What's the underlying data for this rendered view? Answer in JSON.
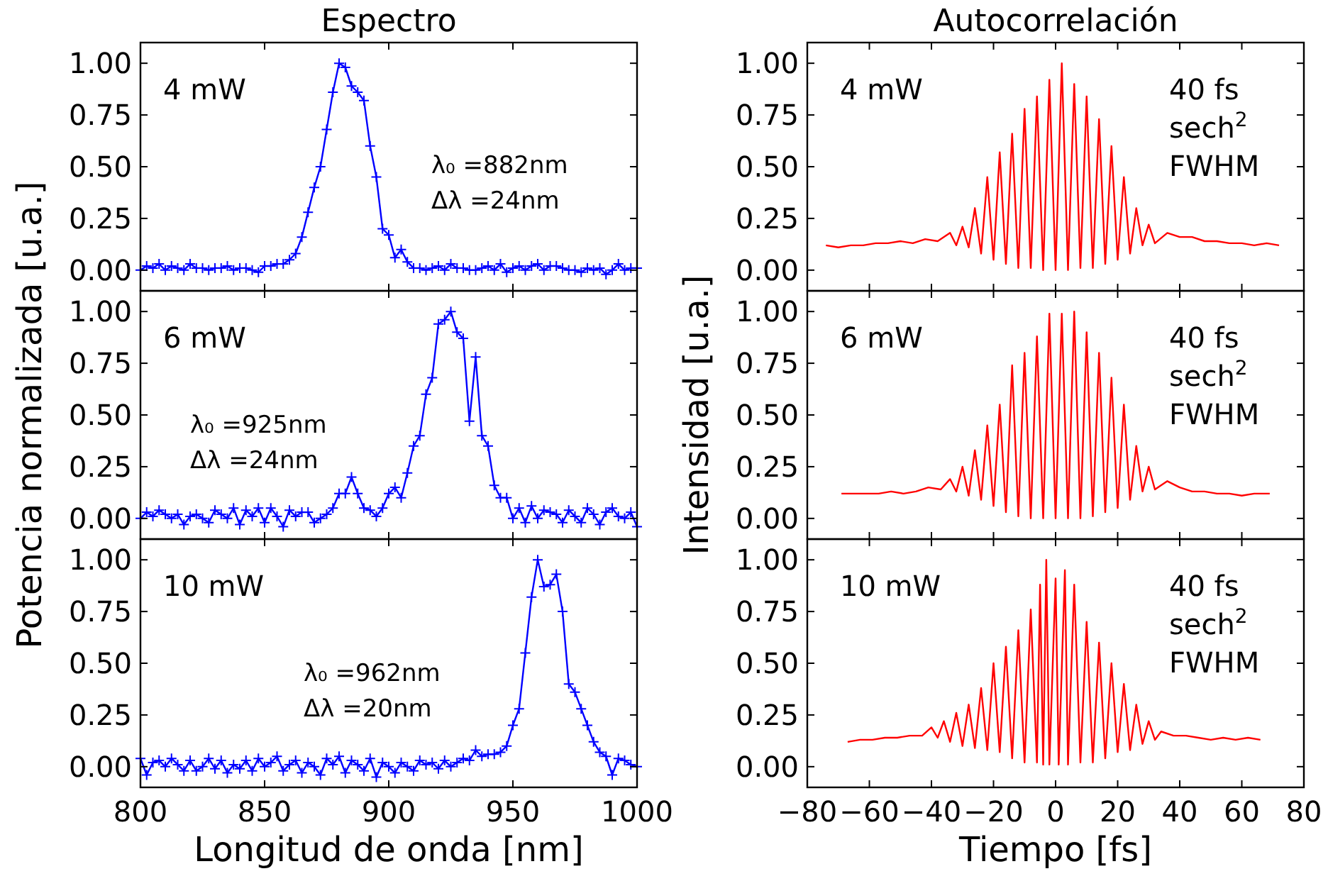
{
  "chart_data": [
    {
      "type": "line",
      "title": "Espectro",
      "marker": "cross",
      "line_style": "solid",
      "tick_labels": "y",
      "xlim": [
        800,
        1000
      ],
      "xticks": [
        800,
        850,
        900,
        950,
        1000
      ],
      "ylim": [
        -0.1,
        1.1
      ],
      "yticks": [
        {
          "value": 0,
          "label": "0.00"
        },
        {
          "value": 0.25,
          "label": "0.25"
        },
        {
          "value": 0.5,
          "label": "0.50"
        },
        {
          "value": 0.75,
          "label": "0.75"
        },
        {
          "value": 1,
          "label": "1.00"
        }
      ],
      "annotations": [
        "4 mW",
        "λ₀ =882nm",
        "Δλ =24nm"
      ],
      "x": [
        800,
        802.5,
        805,
        807.5,
        810,
        812.5,
        815,
        817.5,
        820,
        822.5,
        825,
        827.5,
        830,
        832.5,
        835,
        837.5,
        840,
        842.5,
        845,
        847.5,
        850,
        852.5,
        855,
        857.5,
        860,
        862.5,
        865,
        867.5,
        870,
        872.5,
        875,
        877.5,
        880,
        882.5,
        885,
        887.5,
        890,
        892.5,
        895,
        897.5,
        900,
        902.5,
        905,
        907.5,
        910,
        912.5,
        915,
        917.5,
        920,
        922.5,
        925,
        927.5,
        930,
        932.5,
        935,
        937.5,
        940,
        942.5,
        945,
        947.5,
        950,
        952.5,
        955,
        957.5,
        960,
        962.5,
        965,
        967.5,
        970,
        972.5,
        975,
        977.5,
        980,
        982.5,
        985,
        987.5,
        990,
        992.5,
        995,
        997.5,
        1000
      ],
      "series": [
        {
          "color": "#0000ff",
          "values": [
            0.0,
            0.02,
            0.01,
            0.03,
            0.0,
            0.02,
            0.01,
            0.0,
            0.03,
            0.01,
            0.01,
            0.0,
            0.01,
            0.01,
            0.02,
            0.0,
            0.01,
            0.01,
            0.0,
            -0.01,
            0.02,
            0.02,
            0.03,
            0.03,
            0.05,
            0.08,
            0.16,
            0.28,
            0.4,
            0.5,
            0.68,
            0.86,
            1.0,
            0.98,
            0.89,
            0.86,
            0.82,
            0.6,
            0.45,
            0.2,
            0.17,
            0.06,
            0.1,
            0.04,
            0.01,
            0.01,
            0.0,
            0.01,
            0.02,
            0.0,
            0.03,
            0.01,
            0.01,
            0.0,
            0.0,
            0.01,
            0.02,
            0.0,
            0.03,
            -0.01,
            0.01,
            0.02,
            0.0,
            0.02,
            0.03,
            0.0,
            0.02,
            0.02,
            0.01,
            0.0,
            0.0,
            -0.01,
            0.01,
            0.0,
            0.01,
            -0.02,
            0.0,
            0.03,
            0.0,
            0.01,
            0.01
          ]
        }
      ]
    },
    {
      "type": "line",
      "title": "Autocorrelación",
      "marker": "none",
      "line_style": "solid",
      "tick_labels": "y",
      "xlim": [
        -80,
        80
      ],
      "xticks": [
        -80,
        -60,
        -40,
        -20,
        0,
        20,
        40,
        60,
        80
      ],
      "ylim": [
        -0.1,
        1.1
      ],
      "yticks": [
        {
          "value": 0,
          "label": "0.00"
        },
        {
          "value": 0.25,
          "label": "0.25"
        },
        {
          "value": 0.5,
          "label": "0.50"
        },
        {
          "value": 0.75,
          "label": "0.75"
        },
        {
          "value": 1,
          "label": "1.00"
        }
      ],
      "annotations": [
        "4 mW",
        "40 fs",
        "sech$^{2}$",
        "FWHM"
      ],
      "x": [
        -74,
        -70,
        -66,
        -62,
        -58,
        -54,
        -50,
        -46,
        -42,
        -38,
        -34,
        -32,
        -30,
        -28,
        -26,
        -24,
        -22,
        -20,
        -18,
        -16,
        -14,
        -12,
        -10,
        -8,
        -6,
        -4,
        -2,
        0,
        2,
        4,
        6,
        8,
        10,
        12,
        14,
        16,
        18,
        20,
        22,
        24,
        26,
        28,
        30,
        32,
        36,
        40,
        44,
        48,
        52,
        56,
        60,
        64,
        68,
        72
      ],
      "series": [
        {
          "color": "#ff0000",
          "values": [
            0.12,
            0.11,
            0.12,
            0.12,
            0.13,
            0.13,
            0.14,
            0.13,
            0.15,
            0.14,
            0.18,
            0.12,
            0.21,
            0.11,
            0.3,
            0.08,
            0.45,
            0.05,
            0.57,
            0.03,
            0.66,
            0.01,
            0.78,
            0.01,
            0.84,
            0.0,
            0.92,
            0.0,
            1.0,
            0.0,
            0.9,
            0.01,
            0.84,
            0.01,
            0.73,
            0.03,
            0.6,
            0.05,
            0.45,
            0.08,
            0.3,
            0.12,
            0.22,
            0.13,
            0.18,
            0.16,
            0.16,
            0.14,
            0.14,
            0.13,
            0.13,
            0.12,
            0.13,
            0.12
          ]
        }
      ]
    },
    {
      "type": "line",
      "ylabel": "Potencia normalizada [u.a.]",
      "marker": "cross",
      "line_style": "solid",
      "tick_labels": "y",
      "xlim": [
        800,
        1000
      ],
      "xticks": [
        800,
        850,
        900,
        950,
        1000
      ],
      "ylim": [
        -0.1,
        1.1
      ],
      "yticks": [
        {
          "value": 0,
          "label": "0.00"
        },
        {
          "value": 0.25,
          "label": "0.25"
        },
        {
          "value": 0.5,
          "label": "0.50"
        },
        {
          "value": 0.75,
          "label": "0.75"
        },
        {
          "value": 1,
          "label": "1.00"
        }
      ],
      "annotations": [
        "6 mW",
        "λ₀ =925nm",
        "Δλ =24nm"
      ],
      "x": [
        800,
        802.5,
        805,
        807.5,
        810,
        812.5,
        815,
        817.5,
        820,
        822.5,
        825,
        827.5,
        830,
        832.5,
        835,
        837.5,
        840,
        842.5,
        845,
        847.5,
        850,
        852.5,
        855,
        857.5,
        860,
        862.5,
        865,
        867.5,
        870,
        872.5,
        875,
        877.5,
        880,
        882.5,
        885,
        887.5,
        890,
        892.5,
        895,
        897.5,
        900,
        902.5,
        905,
        907.5,
        910,
        912.5,
        915,
        917.5,
        920,
        922.5,
        925,
        927.5,
        930,
        932.5,
        935,
        937.5,
        940,
        942.5,
        945,
        947.5,
        950,
        952.5,
        955,
        957.5,
        960,
        962.5,
        965,
        967.5,
        970,
        972.5,
        975,
        977.5,
        980,
        982.5,
        985,
        987.5,
        990,
        992.5,
        995,
        997.5,
        1000
      ],
      "series": [
        {
          "color": "#0000ff",
          "values": [
            0.0,
            0.03,
            0.01,
            0.04,
            0.02,
            0.0,
            0.02,
            -0.03,
            0.01,
            0.02,
            0.0,
            -0.02,
            0.04,
            0.02,
            0.0,
            0.05,
            -0.03,
            0.04,
            0.01,
            0.05,
            -0.02,
            0.05,
            0.01,
            -0.04,
            0.04,
            0.01,
            0.03,
            0.03,
            -0.02,
            0.0,
            0.02,
            0.05,
            0.12,
            0.12,
            0.2,
            0.12,
            0.05,
            0.04,
            0.01,
            0.05,
            0.12,
            0.15,
            0.1,
            0.22,
            0.35,
            0.4,
            0.6,
            0.68,
            0.94,
            0.96,
            1.0,
            0.9,
            0.87,
            0.47,
            0.78,
            0.4,
            0.35,
            0.16,
            0.1,
            0.1,
            0.0,
            0.05,
            -0.02,
            0.06,
            0.0,
            0.04,
            0.03,
            0.02,
            -0.02,
            0.04,
            0.01,
            -0.02,
            0.05,
            0.02,
            -0.03,
            0.03,
            0.05,
            0.01,
            0.0,
            0.03,
            -0.04
          ]
        }
      ]
    },
    {
      "type": "line",
      "ylabel": "Intensidad [u.a.]",
      "marker": "none",
      "line_style": "solid",
      "tick_labels": "y",
      "xlim": [
        -80,
        80
      ],
      "xticks": [
        -80,
        -60,
        -40,
        -20,
        0,
        20,
        40,
        60,
        80
      ],
      "ylim": [
        -0.1,
        1.1
      ],
      "yticks": [
        {
          "value": 0,
          "label": "0.00"
        },
        {
          "value": 0.25,
          "label": "0.25"
        },
        {
          "value": 0.5,
          "label": "0.50"
        },
        {
          "value": 0.75,
          "label": "0.75"
        },
        {
          "value": 1,
          "label": "1.00"
        }
      ],
      "annotations": [
        "6 mW",
        "40 fs",
        "sech$^{2}$",
        "FWHM"
      ],
      "x": [
        -69,
        -65,
        -61,
        -57,
        -53,
        -49,
        -45,
        -41,
        -37,
        -34,
        -32,
        -30,
        -28,
        -26,
        -24,
        -22,
        -20,
        -18,
        -16,
        -14,
        -12,
        -10,
        -8,
        -6,
        -4,
        -2,
        0,
        2,
        4,
        6,
        8,
        10,
        12,
        14,
        16,
        18,
        20,
        22,
        24,
        26,
        28,
        30,
        32,
        36,
        40,
        44,
        48,
        52,
        56,
        60,
        64,
        69
      ],
      "series": [
        {
          "color": "#ff0000",
          "values": [
            0.12,
            0.12,
            0.12,
            0.12,
            0.13,
            0.12,
            0.13,
            0.15,
            0.14,
            0.19,
            0.13,
            0.25,
            0.11,
            0.33,
            0.09,
            0.45,
            0.06,
            0.55,
            0.03,
            0.74,
            0.01,
            0.8,
            0.0,
            0.88,
            0.0,
            0.99,
            0.0,
            0.99,
            0.0,
            1.0,
            0.0,
            0.9,
            0.01,
            0.8,
            0.03,
            0.68,
            0.05,
            0.55,
            0.09,
            0.35,
            0.13,
            0.25,
            0.14,
            0.18,
            0.15,
            0.13,
            0.13,
            0.12,
            0.12,
            0.11,
            0.12,
            0.12
          ]
        }
      ]
    },
    {
      "type": "line",
      "xlabel": "Longitud de onda [nm]",
      "marker": "cross",
      "line_style": "solid",
      "xlim": [
        800,
        1000
      ],
      "xticks": [
        800,
        850,
        900,
        950,
        1000
      ],
      "ylim": [
        -0.1,
        1.1
      ],
      "yticks": [
        {
          "value": 0,
          "label": "0.00"
        },
        {
          "value": 0.25,
          "label": "0.25"
        },
        {
          "value": 0.5,
          "label": "0.50"
        },
        {
          "value": 0.75,
          "label": "0.75"
        },
        {
          "value": 1,
          "label": "1.00"
        }
      ],
      "annotations": [
        "10 mW",
        "λ₀ =962nm",
        "Δλ =20nm"
      ],
      "x": [
        800,
        802.5,
        805,
        807.5,
        810,
        812.5,
        815,
        817.5,
        820,
        822.5,
        825,
        827.5,
        830,
        832.5,
        835,
        837.5,
        840,
        842.5,
        845,
        847.5,
        850,
        852.5,
        855,
        857.5,
        860,
        862.5,
        865,
        867.5,
        870,
        872.5,
        875,
        877.5,
        880,
        882.5,
        885,
        887.5,
        890,
        892.5,
        895,
        897.5,
        900,
        902.5,
        905,
        907.5,
        910,
        912.5,
        915,
        917.5,
        920,
        922.5,
        925,
        927.5,
        930,
        932.5,
        935,
        937.5,
        940,
        942.5,
        945,
        947.5,
        950,
        952.5,
        955,
        957.5,
        960,
        962.5,
        965,
        967.5,
        970,
        972.5,
        975,
        977.5,
        980,
        982.5,
        985,
        987.5,
        990,
        992.5,
        995,
        997.5,
        1000
      ],
      "series": [
        {
          "color": "#0000ff",
          "values": [
            0.04,
            -0.04,
            0.02,
            0.03,
            0.0,
            0.04,
            0.01,
            -0.02,
            0.03,
            -0.02,
            0.0,
            0.04,
            -0.01,
            0.03,
            -0.03,
            0.01,
            -0.01,
            0.03,
            -0.02,
            0.04,
            0.0,
            0.02,
            0.05,
            -0.02,
            0.01,
            0.03,
            -0.03,
            0.02,
            0.0,
            -0.04,
            0.04,
            0.01,
            0.05,
            -0.03,
            0.03,
            0.01,
            -0.02,
            0.04,
            -0.05,
            0.02,
            0.0,
            -0.03,
            0.02,
            0.0,
            -0.02,
            0.03,
            0.01,
            0.02,
            -0.01,
            0.03,
            0.0,
            0.02,
            0.04,
            0.03,
            0.08,
            0.05,
            0.06,
            0.06,
            0.07,
            0.1,
            0.2,
            0.28,
            0.55,
            0.82,
            1.0,
            0.87,
            0.88,
            0.93,
            0.75,
            0.4,
            0.36,
            0.28,
            0.2,
            0.12,
            0.07,
            0.05,
            -0.04,
            0.04,
            0.03,
            0.01,
            0.0
          ]
        }
      ]
    },
    {
      "type": "line",
      "xlabel": "Tiempo [fs]",
      "marker": "none",
      "line_style": "solid",
      "xlim": [
        -80,
        80
      ],
      "xticks": [
        {
          "value": -80,
          "label": "−80"
        },
        {
          "value": -60,
          "label": "−60"
        },
        {
          "value": -40,
          "label": "−40"
        },
        {
          "value": -20,
          "label": "−20"
        },
        0,
        20,
        40,
        60,
        80
      ],
      "ylim": [
        -0.1,
        1.1
      ],
      "yticks": [
        {
          "value": 0,
          "label": "0.00"
        },
        {
          "value": 0.25,
          "label": "0.25"
        },
        {
          "value": 0.5,
          "label": "0.50"
        },
        {
          "value": 0.75,
          "label": "0.75"
        },
        {
          "value": 1,
          "label": "1.00"
        }
      ],
      "annotations": [
        "10 mW",
        "40 fs",
        "sech$^{2}$",
        "FWHM"
      ],
      "x": [
        -67,
        -63,
        -59,
        -55,
        -51,
        -47,
        -43,
        -40,
        -38,
        -36,
        -34,
        -32,
        -30,
        -28,
        -26,
        -24,
        -22,
        -20,
        -18,
        -16,
        -14,
        -12,
        -10,
        -8,
        -6,
        -5,
        -4,
        -3,
        -2,
        0,
        1,
        3,
        4,
        6,
        8,
        10,
        12,
        14,
        16,
        18,
        20,
        22,
        24,
        26,
        28,
        30,
        32,
        34,
        38,
        42,
        46,
        50,
        54,
        58,
        62,
        66
      ],
      "series": [
        {
          "color": "#ff0000",
          "values": [
            0.12,
            0.13,
            0.13,
            0.14,
            0.14,
            0.15,
            0.15,
            0.19,
            0.14,
            0.22,
            0.12,
            0.26,
            0.1,
            0.3,
            0.09,
            0.38,
            0.08,
            0.5,
            0.07,
            0.58,
            0.04,
            0.66,
            0.02,
            0.76,
            0.02,
            0.88,
            0.01,
            1.0,
            0.01,
            0.91,
            0.01,
            0.95,
            0.01,
            0.88,
            0.02,
            0.7,
            0.02,
            0.6,
            0.04,
            0.5,
            0.07,
            0.4,
            0.08,
            0.3,
            0.11,
            0.22,
            0.13,
            0.17,
            0.15,
            0.15,
            0.14,
            0.13,
            0.14,
            0.13,
            0.14,
            0.13
          ]
        }
      ]
    }
  ]
}
